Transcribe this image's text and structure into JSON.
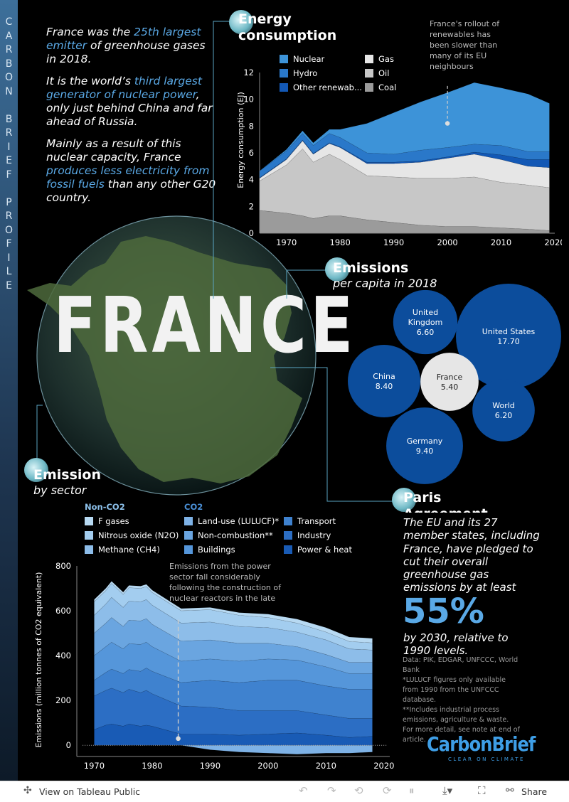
{
  "sidebar_title": [
    "C",
    "A",
    "R",
    "B",
    "O",
    "N",
    "",
    "B",
    "R",
    "I",
    "E",
    "F",
    "",
    "P",
    "R",
    "O",
    "F",
    "I",
    "L",
    "E"
  ],
  "intro": {
    "p1": {
      "a": "France was the ",
      "b": "25th largest emitter",
      "c": " of greenhouse gases in 2018."
    },
    "p2": {
      "a": "It is the world’s ",
      "b": "third largest generator of nuclear power",
      "c": ", only just behind China and far ahead of Russia."
    },
    "p3": {
      "a": "Mainly as a result of this nuclear capacity, France ",
      "b": "produces less electricity from fossil fuels",
      "c": " than any other G20 country."
    }
  },
  "country_title": "FRANCE",
  "energy": {
    "title": "Energy consumption",
    "legend": [
      "Nuclear",
      "Hydro",
      "Other renewab...",
      "Gas",
      "Oil",
      "Coal"
    ],
    "annotation": "France's rollout of renewables has been slower than many of its EU neighbours",
    "colors": {
      "Nuclear": "#3d93d8",
      "Hydro": "#2a78c9",
      "Other renewables": "#1358b5",
      "Gas": "#e6e6e6",
      "Oil": "#c7c7c7",
      "Coal": "#9b9b9b"
    }
  },
  "per_capita": {
    "title": "Emissions",
    "subtitle": "per capita in 2018"
  },
  "sector": {
    "title": "Emission",
    "subtitle": "by sector",
    "group_non": "Non-CO2",
    "group_co2": "CO2",
    "legend_non": [
      "F gases",
      "Nitrous oxide (N2O)",
      "Methane (CH4)"
    ],
    "legend_co2a": [
      "Land-use (LULUCF)*",
      "Non-combustion**",
      "Buildings"
    ],
    "legend_co2b": [
      "Transport",
      "Industry",
      "Power & heat"
    ],
    "annotation": "Emissions from the power sector fall considerably following the construction of nuclear reactors in the late"
  },
  "paris": {
    "title": "Paris Agreement",
    "body": "The EU and its 27 member states, including France, have pledged to cut their overall greenhouse gas emissions by at least",
    "big": "55%",
    "tail": "by 2030, relative to 1990 levels."
  },
  "notes": {
    "data": "Data: PIK, EDGAR, UNFCCC, World Bank",
    "lulucf": "*LULUCF figures only available from 1990 from the UNFCCC database.",
    "incl": "**Includes industrial process emissions, agriculture & waste.",
    "more": "For more detail, see note at end of article."
  },
  "brand": {
    "name": "CarbonBrief",
    "tag": "CLEAR ON CLIMATE"
  },
  "footer": {
    "view": "View on Tableau Public",
    "share": "Share"
  },
  "chart_data": [
    {
      "type": "area",
      "name": "Energy consumption",
      "ylabel": "Energy consumption (EJ)",
      "xlim": [
        1965,
        2020
      ],
      "ylim": [
        0,
        12
      ],
      "x_ticks": [
        1970,
        1980,
        1990,
        2000,
        2010,
        2020
      ],
      "y_ticks": [
        0,
        2,
        4,
        6,
        8,
        10,
        12
      ],
      "x": [
        1965,
        1970,
        1973,
        1975,
        1978,
        1980,
        1985,
        1990,
        1995,
        2000,
        2005,
        2010,
        2015,
        2019
      ],
      "series": [
        {
          "name": "Coal",
          "values": [
            1.7,
            1.5,
            1.3,
            1.1,
            1.3,
            1.3,
            1.0,
            0.8,
            0.6,
            0.5,
            0.5,
            0.4,
            0.3,
            0.2
          ]
        },
        {
          "name": "Oil",
          "values": [
            2.2,
            3.6,
            5.0,
            4.2,
            4.6,
            4.2,
            3.3,
            3.4,
            3.5,
            3.6,
            3.7,
            3.4,
            3.3,
            3.2
          ]
        },
        {
          "name": "Gas",
          "values": [
            0.2,
            0.4,
            0.6,
            0.6,
            0.8,
            0.9,
            0.9,
            1.0,
            1.2,
            1.5,
            1.7,
            1.7,
            1.4,
            1.5
          ]
        },
        {
          "name": "Other renewables",
          "values": [
            0.05,
            0.05,
            0.05,
            0.05,
            0.05,
            0.05,
            0.1,
            0.1,
            0.1,
            0.1,
            0.15,
            0.35,
            0.5,
            0.6
          ]
        },
        {
          "name": "Hydro",
          "values": [
            0.5,
            0.6,
            0.5,
            0.6,
            0.7,
            0.7,
            0.7,
            0.6,
            0.8,
            0.7,
            0.6,
            0.7,
            0.6,
            0.6
          ]
        },
        {
          "name": "Nuclear",
          "values": [
            0.0,
            0.1,
            0.2,
            0.2,
            0.3,
            0.6,
            2.2,
            3.1,
            3.6,
            4.1,
            4.6,
            4.3,
            4.3,
            3.6
          ]
        }
      ]
    },
    {
      "type": "bubble",
      "name": "Emissions per capita in 2018",
      "unit": "tCO2e per person",
      "categories": [
        "United States",
        "United Kingdom",
        "China",
        "France",
        "Germany",
        "World"
      ],
      "values": [
        17.7,
        6.6,
        8.4,
        5.4,
        9.4,
        6.2
      ],
      "labels": [
        "United States",
        "United Kingdom",
        "China",
        "France",
        "Germany",
        "World"
      ]
    },
    {
      "type": "area",
      "name": "Emission by sector",
      "ylabel": "Emissions (million tonnes of CO2 equivalent)",
      "xlim": [
        1967,
        2021
      ],
      "ylim": [
        -50,
        800
      ],
      "x_ticks": [
        1970,
        1980,
        1990,
        2000,
        2010,
        2020
      ],
      "y_ticks": [
        0,
        200,
        400,
        600,
        800
      ],
      "x": [
        1970,
        1972,
        1973,
        1975,
        1976,
        1978,
        1979,
        1980,
        1985,
        1990,
        1995,
        2000,
        2005,
        2010,
        2014,
        2018
      ],
      "series": [
        {
          "name": "Power & heat",
          "values": [
            70,
            90,
            95,
            85,
            95,
            85,
            90,
            85,
            50,
            50,
            45,
            50,
            55,
            45,
            35,
            40
          ]
        },
        {
          "name": "Industry",
          "values": [
            150,
            155,
            160,
            150,
            155,
            150,
            155,
            145,
            125,
            120,
            110,
            105,
            100,
            90,
            85,
            80
          ]
        },
        {
          "name": "Transport",
          "values": [
            70,
            80,
            85,
            85,
            88,
            95,
            100,
            100,
            105,
            120,
            125,
            135,
            135,
            130,
            130,
            130
          ]
        },
        {
          "name": "Buildings",
          "values": [
            110,
            115,
            120,
            110,
            115,
            120,
            115,
            110,
            95,
            95,
            95,
            95,
            90,
            85,
            70,
            70
          ]
        },
        {
          "name": "Non-combustion**",
          "values": [
            100,
            105,
            110,
            100,
            105,
            105,
            105,
            100,
            90,
            85,
            80,
            70,
            60,
            55,
            50,
            50
          ]
        },
        {
          "name": "Land-use (LULUCF)*",
          "values": [
            0,
            0,
            0,
            0,
            0,
            0,
            0,
            0,
            0,
            -20,
            -30,
            -35,
            -40,
            -35,
            -35,
            -30
          ]
        },
        {
          "name": "Methane (CH4)",
          "values": [
            80,
            85,
            90,
            85,
            85,
            85,
            85,
            85,
            80,
            80,
            75,
            70,
            65,
            65,
            60,
            55
          ]
        },
        {
          "name": "Nitrous oxide (N2O)",
          "values": [
            60,
            60,
            62,
            58,
            60,
            60,
            58,
            57,
            55,
            55,
            50,
            45,
            40,
            35,
            33,
            32
          ]
        },
        {
          "name": "F gases",
          "values": [
            10,
            10,
            10,
            10,
            10,
            10,
            10,
            10,
            10,
            10,
            12,
            15,
            18,
            20,
            20,
            20
          ]
        }
      ]
    }
  ]
}
